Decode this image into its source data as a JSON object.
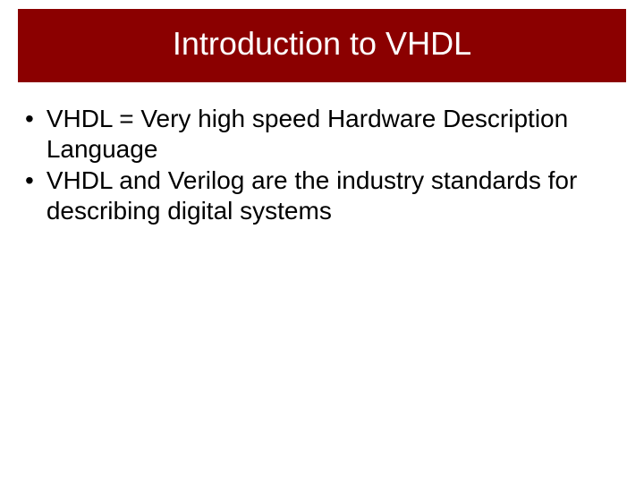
{
  "slide": {
    "title": "Introduction to VHDL",
    "title_bg_color": "#8b0000",
    "title_text_color": "#ffffff",
    "title_fontsize": 36,
    "background_color": "#ffffff",
    "body_text_color": "#000000",
    "body_fontsize": 28,
    "bullets": [
      "VHDL = Very high speed Hardware Description Language",
      "VHDL and Verilog are the industry standards for describing digital systems"
    ]
  }
}
